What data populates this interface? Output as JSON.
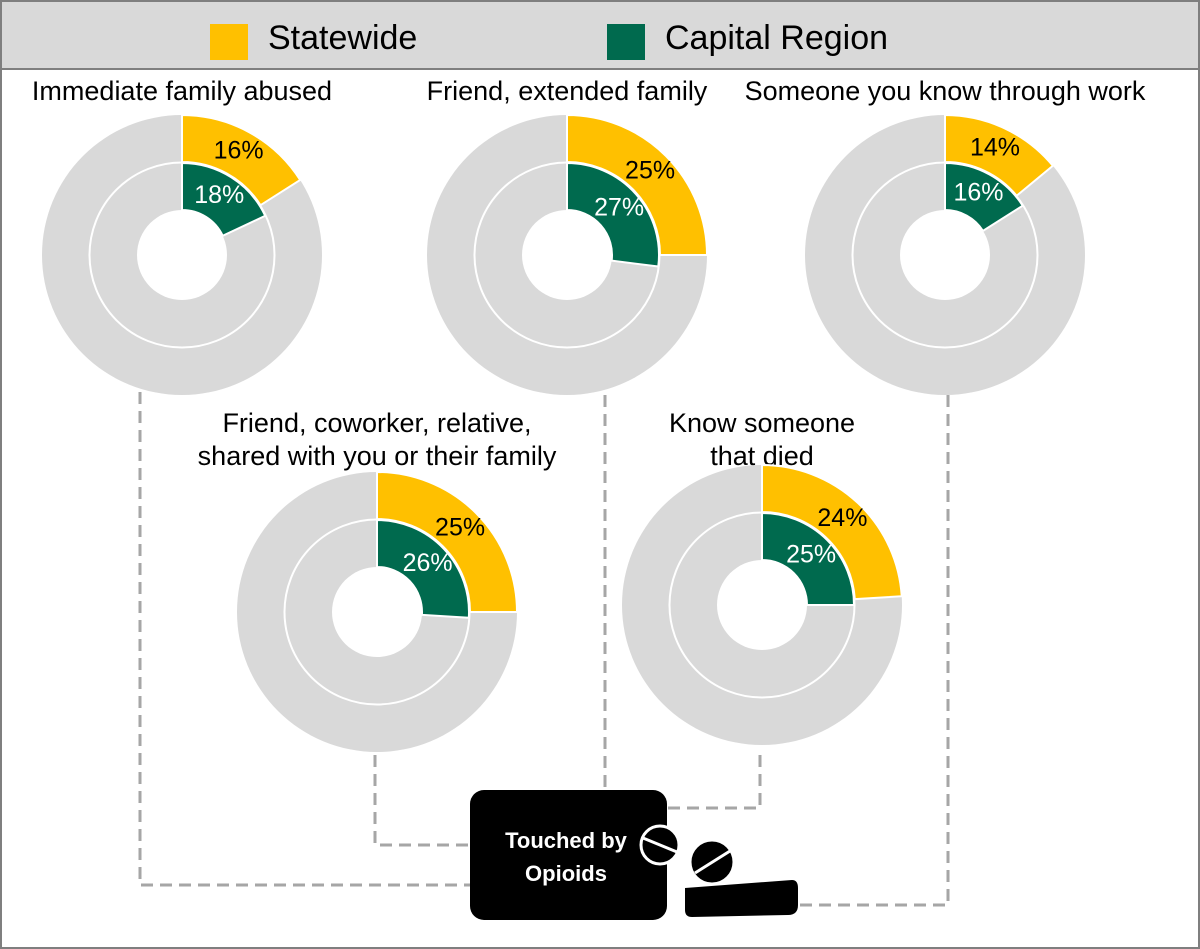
{
  "chart_data": [
    {
      "type": "donut",
      "title": "Immediate family abused",
      "series": [
        {
          "name": "Statewide",
          "color": "#ffc000",
          "values": [
            16
          ],
          "value_labels": [
            "16%"
          ]
        },
        {
          "name": "Capital Region",
          "color": "#006a4e",
          "values": [
            18
          ],
          "value_labels": [
            "18%"
          ]
        }
      ]
    },
    {
      "type": "donut",
      "title": "Friend, extended family",
      "series": [
        {
          "name": "Statewide",
          "color": "#ffc000",
          "values": [
            25
          ],
          "value_labels": [
            "25%"
          ]
        },
        {
          "name": "Capital Region",
          "color": "#006a4e",
          "values": [
            27
          ],
          "value_labels": [
            "27%"
          ]
        }
      ]
    },
    {
      "type": "donut",
      "title": "Someone you know through work",
      "series": [
        {
          "name": "Statewide",
          "color": "#ffc000",
          "values": [
            14
          ],
          "value_labels": [
            "14%"
          ]
        },
        {
          "name": "Capital Region",
          "color": "#006a4e",
          "values": [
            16
          ],
          "value_labels": [
            "16%"
          ]
        }
      ]
    },
    {
      "type": "donut",
      "title": [
        "Friend, coworker, relative,",
        "shared with you or their family"
      ],
      "series": [
        {
          "name": "Statewide",
          "color": "#ffc000",
          "values": [
            25
          ],
          "value_labels": [
            "25%"
          ]
        },
        {
          "name": "Capital Region",
          "color": "#006a4e",
          "values": [
            26
          ],
          "value_labels": [
            "26%"
          ]
        }
      ]
    },
    {
      "type": "donut",
      "title": [
        "Know someone",
        "that died"
      ],
      "series": [
        {
          "name": "Statewide",
          "color": "#ffc000",
          "values": [
            24
          ],
          "value_labels": [
            "24%"
          ]
        },
        {
          "name": "Capital Region",
          "color": "#006a4e",
          "values": [
            25
          ],
          "value_labels": [
            "25%"
          ]
        }
      ]
    }
  ],
  "center_label": [
    "Touched by",
    "Opioids"
  ]
}
